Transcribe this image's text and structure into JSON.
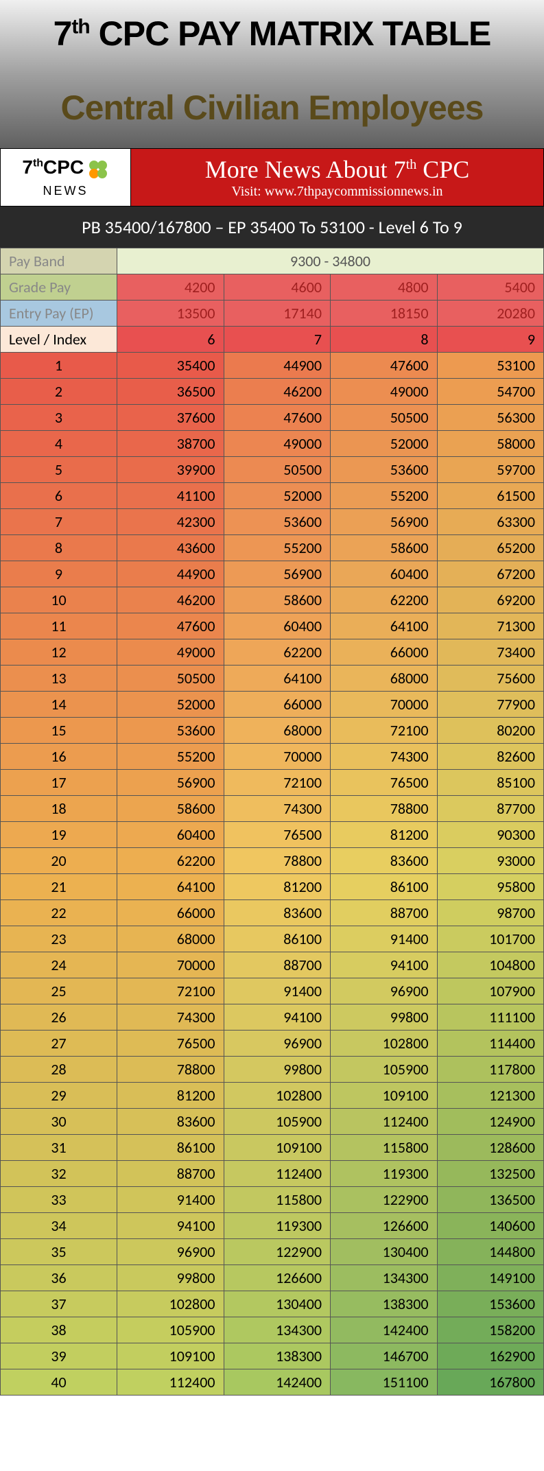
{
  "header": {
    "title_pre": "7",
    "title_sup": "th",
    "title_post": " CPC PAY MATRIX TABLE",
    "subtitle": "Central Civilian Employees"
  },
  "banner": {
    "logo_pre": "7",
    "logo_sup": "th",
    "logo_post": "CPC",
    "logo_news": "NEWS",
    "red_title_pre": "More News About 7",
    "red_title_sup": "th",
    "red_title_post": " CPC",
    "red_visit": "Visit: www.7thpaycommissionnews.in"
  },
  "subtitle_bar": "PB 35400/167800 – EP 35400 To 53100 - Level 6 To 9",
  "table": {
    "payband_label": "Pay Band",
    "payband_value": "9300 - 34800",
    "gradepay_label": "Grade Pay",
    "gradepay": [
      "4200",
      "4600",
      "4800",
      "5400"
    ],
    "entrypay_label": "Entry Pay (EP)",
    "entrypay": [
      "13500",
      "17140",
      "18150",
      "20280"
    ],
    "level_label": "Level / Index",
    "levels": [
      "6",
      "7",
      "8",
      "9"
    ],
    "gradient_colors": {
      "top": [
        "#e85a4a",
        "#eb7a4e",
        "#ec8a50",
        "#ed9a50"
      ],
      "mid": [
        "#edb050",
        "#f0c860",
        "#e8d060",
        "#d8d060"
      ],
      "bot": [
        "#c0d060",
        "#a8c860",
        "#88b860",
        "#68a858"
      ]
    },
    "rows": [
      {
        "i": "1",
        "v": [
          "35400",
          "44900",
          "47600",
          "53100"
        ]
      },
      {
        "i": "2",
        "v": [
          "36500",
          "46200",
          "49000",
          "54700"
        ]
      },
      {
        "i": "3",
        "v": [
          "37600",
          "47600",
          "50500",
          "56300"
        ]
      },
      {
        "i": "4",
        "v": [
          "38700",
          "49000",
          "52000",
          "58000"
        ]
      },
      {
        "i": "5",
        "v": [
          "39900",
          "50500",
          "53600",
          "59700"
        ]
      },
      {
        "i": "6",
        "v": [
          "41100",
          "52000",
          "55200",
          "61500"
        ]
      },
      {
        "i": "7",
        "v": [
          "42300",
          "53600",
          "56900",
          "63300"
        ]
      },
      {
        "i": "8",
        "v": [
          "43600",
          "55200",
          "58600",
          "65200"
        ]
      },
      {
        "i": "9",
        "v": [
          "44900",
          "56900",
          "60400",
          "67200"
        ]
      },
      {
        "i": "10",
        "v": [
          "46200",
          "58600",
          "62200",
          "69200"
        ]
      },
      {
        "i": "11",
        "v": [
          "47600",
          "60400",
          "64100",
          "71300"
        ]
      },
      {
        "i": "12",
        "v": [
          "49000",
          "62200",
          "66000",
          "73400"
        ]
      },
      {
        "i": "13",
        "v": [
          "50500",
          "64100",
          "68000",
          "75600"
        ]
      },
      {
        "i": "14",
        "v": [
          "52000",
          "66000",
          "70000",
          "77900"
        ]
      },
      {
        "i": "15",
        "v": [
          "53600",
          "68000",
          "72100",
          "80200"
        ]
      },
      {
        "i": "16",
        "v": [
          "55200",
          "70000",
          "74300",
          "82600"
        ]
      },
      {
        "i": "17",
        "v": [
          "56900",
          "72100",
          "76500",
          "85100"
        ]
      },
      {
        "i": "18",
        "v": [
          "58600",
          "74300",
          "78800",
          "87700"
        ]
      },
      {
        "i": "19",
        "v": [
          "60400",
          "76500",
          "81200",
          "90300"
        ]
      },
      {
        "i": "20",
        "v": [
          "62200",
          "78800",
          "83600",
          "93000"
        ]
      },
      {
        "i": "21",
        "v": [
          "64100",
          "81200",
          "86100",
          "95800"
        ]
      },
      {
        "i": "22",
        "v": [
          "66000",
          "83600",
          "88700",
          "98700"
        ]
      },
      {
        "i": "23",
        "v": [
          "68000",
          "86100",
          "91400",
          "101700"
        ]
      },
      {
        "i": "24",
        "v": [
          "70000",
          "88700",
          "94100",
          "104800"
        ]
      },
      {
        "i": "25",
        "v": [
          "72100",
          "91400",
          "96900",
          "107900"
        ]
      },
      {
        "i": "26",
        "v": [
          "74300",
          "94100",
          "99800",
          "111100"
        ]
      },
      {
        "i": "27",
        "v": [
          "76500",
          "96900",
          "102800",
          "114400"
        ]
      },
      {
        "i": "28",
        "v": [
          "78800",
          "99800",
          "105900",
          "117800"
        ]
      },
      {
        "i": "29",
        "v": [
          "81200",
          "102800",
          "109100",
          "121300"
        ]
      },
      {
        "i": "30",
        "v": [
          "83600",
          "105900",
          "112400",
          "124900"
        ]
      },
      {
        "i": "31",
        "v": [
          "86100",
          "109100",
          "115800",
          "128600"
        ]
      },
      {
        "i": "32",
        "v": [
          "88700",
          "112400",
          "119300",
          "132500"
        ]
      },
      {
        "i": "33",
        "v": [
          "91400",
          "115800",
          "122900",
          "136500"
        ]
      },
      {
        "i": "34",
        "v": [
          "94100",
          "119300",
          "126600",
          "140600"
        ]
      },
      {
        "i": "35",
        "v": [
          "96900",
          "122900",
          "130400",
          "144800"
        ]
      },
      {
        "i": "36",
        "v": [
          "99800",
          "126600",
          "134300",
          "149100"
        ]
      },
      {
        "i": "37",
        "v": [
          "102800",
          "130400",
          "138300",
          "153600"
        ]
      },
      {
        "i": "38",
        "v": [
          "105900",
          "134300",
          "142400",
          "158200"
        ]
      },
      {
        "i": "39",
        "v": [
          "109100",
          "138300",
          "146700",
          "162900"
        ]
      },
      {
        "i": "40",
        "v": [
          "112400",
          "142400",
          "151100",
          "167800"
        ]
      }
    ]
  }
}
